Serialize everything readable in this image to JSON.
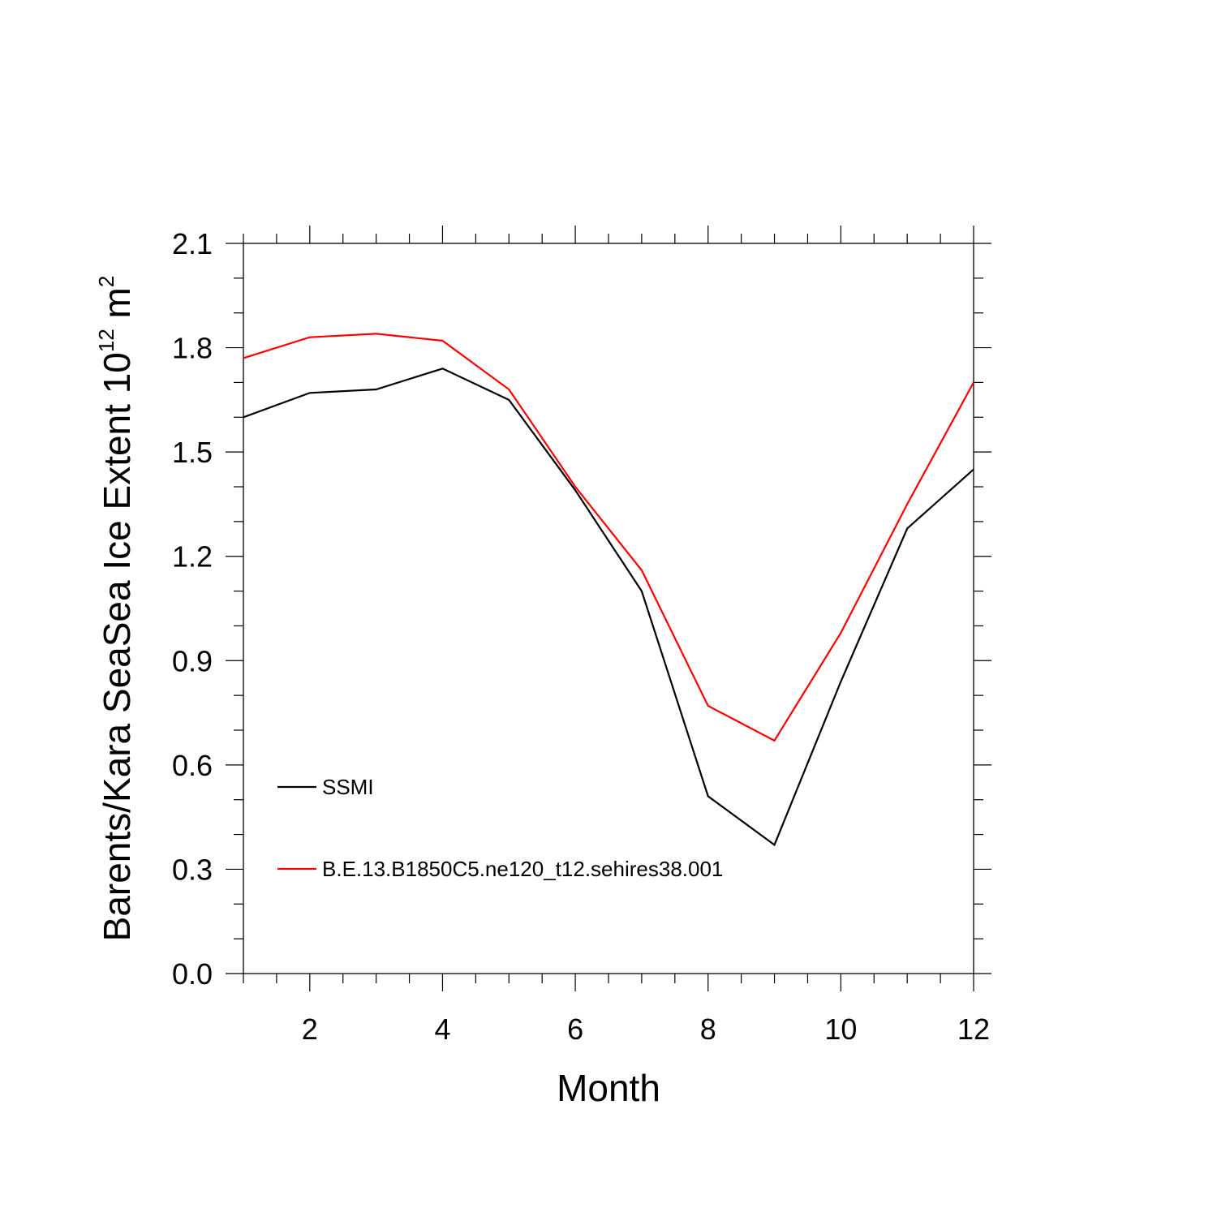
{
  "chart_data": {
    "type": "line",
    "title": "",
    "xlabel": "Month",
    "ylabel": "Barents/Kara SeaSea Ice Extent 10",
    "ylabel_exponent": "12",
    "ylabel_unit": " m",
    "ylabel_unit_exponent": "2",
    "xlim": [
      1,
      12
    ],
    "ylim": [
      0.0,
      2.1
    ],
    "x_ticks": [
      2,
      4,
      6,
      8,
      10,
      12
    ],
    "y_ticks": [
      "0.0",
      "0.3",
      "0.6",
      "0.9",
      "1.2",
      "1.5",
      "1.8",
      "2.1"
    ],
    "grid": false,
    "legend_position": "bottom-left",
    "x": [
      1,
      2,
      3,
      4,
      5,
      6,
      7,
      8,
      9,
      10,
      11,
      12
    ],
    "series": [
      {
        "name": "SSMI",
        "color": "#000000",
        "values": [
          1.6,
          1.67,
          1.68,
          1.74,
          1.65,
          1.39,
          1.1,
          0.51,
          0.37,
          0.84,
          1.28,
          1.45
        ]
      },
      {
        "name": "B.E.13.B1850C5.ne120_t12.sehires38.001",
        "color": "#ff0000",
        "values": [
          1.77,
          1.83,
          1.84,
          1.82,
          1.68,
          1.4,
          1.16,
          0.77,
          0.67,
          0.98,
          1.35,
          1.7
        ]
      }
    ]
  }
}
